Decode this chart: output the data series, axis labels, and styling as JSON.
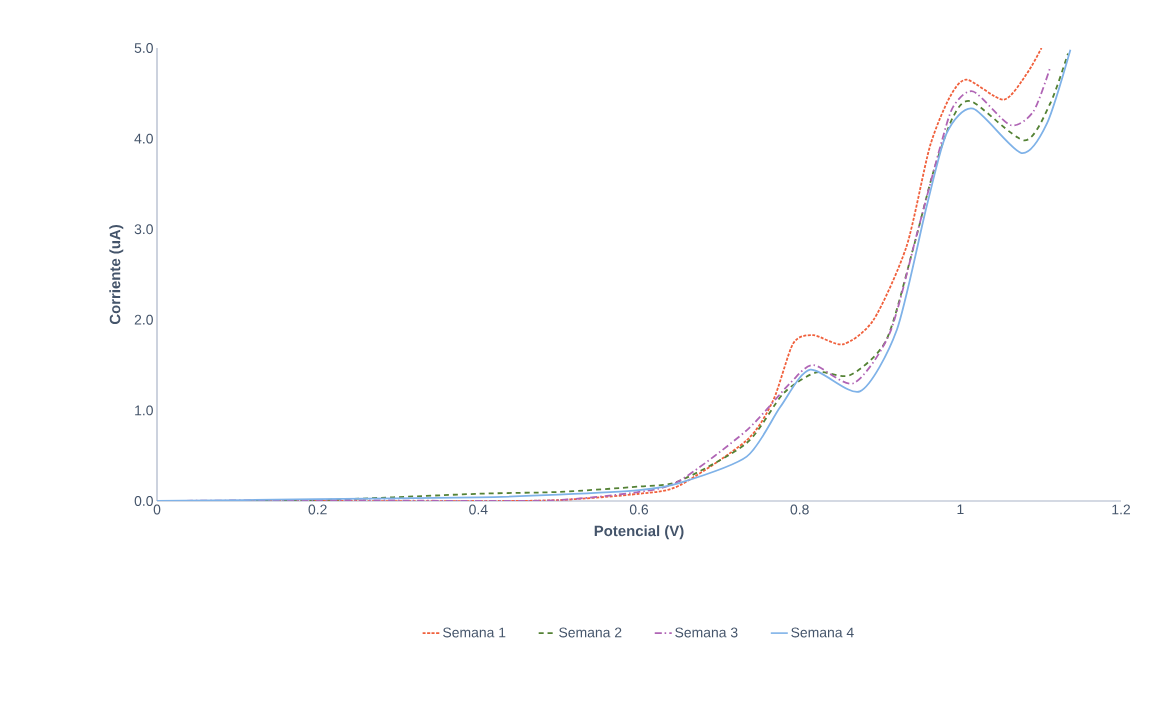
{
  "chart_data": {
    "type": "line",
    "xlabel": "Potencial (V)",
    "ylabel": "Corriente (uA)",
    "xlim": [
      0,
      1.2
    ],
    "xticks": [
      0,
      0.2,
      0.4,
      0.6,
      0.8,
      1,
      1.2
    ],
    "ylim": [
      0,
      5
    ],
    "yticks": [
      {
        "value": 0,
        "label": "0.0"
      },
      {
        "value": 1,
        "label": "1.0"
      },
      {
        "value": 2,
        "label": "2.0"
      },
      {
        "value": 3,
        "label": "3.0"
      },
      {
        "value": 4,
        "label": "4.0"
      },
      {
        "value": 5,
        "label": "5.0"
      }
    ],
    "grid": false,
    "legend": "bottom",
    "marker": "none",
    "series": [
      {
        "name": "Semana 1",
        "color": "#f0603c",
        "line_style": "dotted",
        "x": [
          0,
          0.2,
          0.4,
          0.5,
          0.6,
          0.65,
          0.734,
          0.767,
          0.792,
          0.817,
          0.854,
          0.892,
          0.933,
          0.962,
          0.987,
          1.008,
          1.054,
          1.083,
          1.101
        ],
        "values": [
          0,
          0,
          0,
          0.01,
          0.08,
          0.17,
          0.67,
          1.11,
          1.74,
          1.83,
          1.73,
          2.0,
          2.81,
          3.91,
          4.46,
          4.65,
          4.43,
          4.72,
          5.0
        ]
      },
      {
        "name": "Semana 2",
        "color": "#548235",
        "line_style": "dashed",
        "x": [
          0,
          0.2,
          0.4,
          0.5,
          0.6,
          0.65,
          0.734,
          0.78,
          0.821,
          0.863,
          0.908,
          0.942,
          0.966,
          0.991,
          1.014,
          1.08,
          1.112,
          1.134
        ],
        "values": [
          0,
          0.01,
          0.08,
          0.1,
          0.16,
          0.22,
          0.64,
          1.19,
          1.42,
          1.39,
          1.78,
          2.81,
          3.62,
          4.24,
          4.41,
          3.98,
          4.39,
          4.94
        ]
      },
      {
        "name": "Semana 3",
        "color": "#b065b5",
        "line_style": "dashdot",
        "x": [
          0,
          0.2,
          0.4,
          0.5,
          0.6,
          0.65,
          0.734,
          0.788,
          0.817,
          0.867,
          0.912,
          0.946,
          0.975,
          0.991,
          1.016,
          1.062,
          1.091,
          1.112
        ],
        "values": [
          0,
          0.01,
          0,
          0.01,
          0.1,
          0.22,
          0.78,
          1.3,
          1.5,
          1.3,
          1.85,
          2.95,
          3.91,
          4.35,
          4.52,
          4.15,
          4.3,
          4.79
        ]
      },
      {
        "name": "Semana 4",
        "color": "#7fb2e8",
        "line_style": "solid",
        "x": [
          0,
          0.2,
          0.4,
          0.5,
          0.6,
          0.651,
          0.734,
          0.776,
          0.813,
          0.875,
          0.921,
          0.958,
          0.983,
          1.016,
          1.076,
          1.108,
          1.137
        ],
        "values": [
          0,
          0.02,
          0.04,
          0.07,
          0.12,
          0.2,
          0.49,
          1.04,
          1.45,
          1.21,
          1.89,
          3.25,
          4.06,
          4.33,
          3.84,
          4.17,
          4.98
        ]
      }
    ]
  }
}
